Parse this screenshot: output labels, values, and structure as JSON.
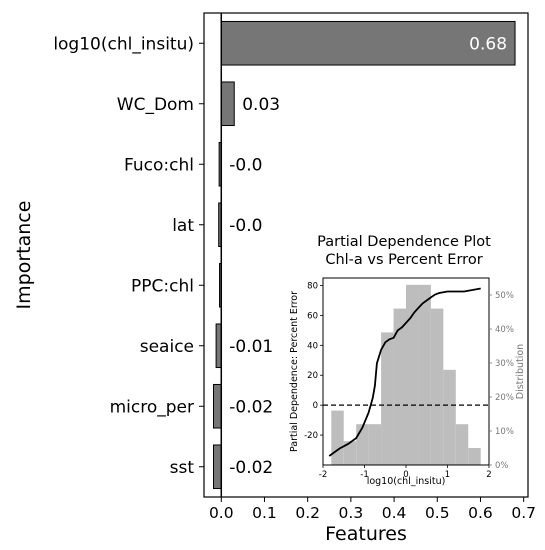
{
  "chart_data": [
    {
      "type": "bar",
      "orientation": "horizontal",
      "categories": [
        "log10(chl_insitu)",
        "WC_Dom",
        "Fuco:chl",
        "lat",
        "PPC:chl",
        "seaice",
        "micro_per",
        "sst"
      ],
      "values": [
        0.68,
        0.03,
        -0.005,
        -0.006,
        -0.004,
        -0.012,
        -0.018,
        -0.018
      ],
      "value_labels": [
        "0.68",
        "0.03",
        "-0.0",
        "-0.0",
        "",
        "-0.01",
        "-0.02",
        "-0.02"
      ],
      "xlabel": "Features",
      "ylabel": "Importance",
      "xlim": [
        -0.04,
        0.71
      ],
      "xticks": [
        "0.0",
        "0.1",
        "0.2",
        "0.3",
        "0.4",
        "0.5",
        "0.6",
        "0.7"
      ],
      "bar_color": "#767676",
      "zero_line": true
    },
    {
      "type": "line",
      "title": "Partial Dependence Plot",
      "subtitle": "Chl-a vs Percent Error",
      "xlabel": "log10(chl_insitu)",
      "ylabel": "Partial Dependence: Percent Error",
      "y2label": "Distribution",
      "xlim": [
        -2,
        2
      ],
      "ylim": [
        -40,
        85
      ],
      "y2lim": [
        0,
        55
      ],
      "xticks": [
        "-2",
        "-1",
        "0",
        "1",
        "2"
      ],
      "yticks": [
        "-20",
        "0",
        "20",
        "40",
        "60",
        "80"
      ],
      "y2ticks": [
        "0%",
        "10%",
        "20%",
        "30%",
        "40%",
        "50%"
      ],
      "line_color": "#000000",
      "hist_color": "#bdbdbd",
      "reference_line": {
        "y": 0,
        "style": "dashed"
      },
      "line": {
        "x": [
          -1.85,
          -1.6,
          -1.4,
          -1.2,
          -1.05,
          -0.9,
          -0.8,
          -0.75,
          -0.7,
          -0.6,
          -0.5,
          -0.4,
          -0.3,
          -0.2,
          -0.1,
          0.0,
          0.1,
          0.2,
          0.3,
          0.4,
          0.5,
          0.6,
          0.7,
          0.8,
          1.0,
          1.2,
          1.4,
          1.6,
          1.8
        ],
        "y": [
          -34,
          -29,
          -26,
          -22,
          -15,
          -5,
          5,
          13,
          28,
          37,
          42,
          44,
          45,
          50,
          52,
          55,
          58,
          62,
          65,
          68,
          70,
          72,
          74,
          75,
          76,
          76,
          76,
          77,
          78
        ]
      },
      "histogram": {
        "bin_edges": [
          -1.8,
          -1.5,
          -1.2,
          -0.9,
          -0.6,
          -0.3,
          0.0,
          0.3,
          0.6,
          0.9,
          1.2,
          1.5,
          1.8
        ],
        "values": [
          16,
          7,
          12,
          12,
          39,
          46,
          53,
          53,
          46,
          28,
          12,
          5
        ]
      }
    }
  ]
}
